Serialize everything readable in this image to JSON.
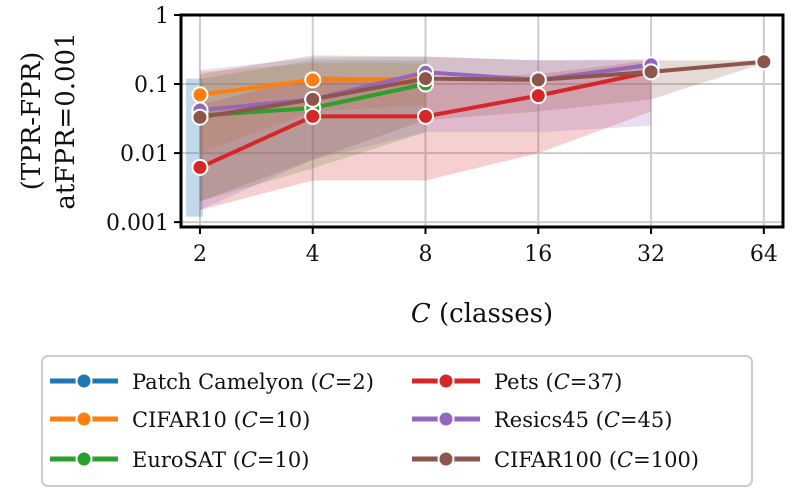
{
  "chart_data": {
    "type": "line",
    "title": "",
    "xlabel_var": "C",
    "xlabel_rest": " (classes)",
    "ylabel_line1": "(TPR-FPR)",
    "ylabel_line2": "atFPR=0.001",
    "x_scale": "log2",
    "y_scale": "log10",
    "x_ticks": [
      2,
      4,
      8,
      16,
      32,
      64
    ],
    "x_tick_labels": [
      "2",
      "4",
      "8",
      "16",
      "32",
      "64"
    ],
    "y_ticks": [
      0.001,
      0.01,
      0.1,
      1
    ],
    "y_tick_labels": [
      "0.001",
      "0.01",
      "0.1",
      "1"
    ],
    "xlim": [
      1.78,
      72
    ],
    "ylim": [
      0.00085,
      1.0
    ],
    "grid": true,
    "legend_position": "bottom",
    "series": [
      {
        "name": "Patch Camelyon (C=2)",
        "name_pre": "Patch Camelyon (",
        "name_post": "=2)",
        "color": "#1f77b4",
        "x": [
          2
        ],
        "y": [
          0.04
        ],
        "lower": [
          0.0012
        ],
        "upper": [
          0.12
        ]
      },
      {
        "name": "CIFAR10 (C=10)",
        "name_pre": "CIFAR10 (",
        "name_post": "=10)",
        "color": "#ff7f0e",
        "x": [
          2,
          4,
          8
        ],
        "y": [
          0.07,
          0.115,
          0.12
        ],
        "lower": [
          0.01,
          0.04,
          0.05
        ],
        "upper": [
          0.15,
          0.2,
          0.2
        ]
      },
      {
        "name": "EuroSAT (C=10)",
        "name_pre": "EuroSAT (",
        "name_post": "=10)",
        "color": "#2ca02c",
        "x": [
          2,
          4,
          8
        ],
        "y": [
          0.035,
          0.045,
          0.1
        ],
        "lower": [
          0.002,
          0.006,
          0.02
        ],
        "upper": [
          0.12,
          0.22,
          0.22
        ]
      },
      {
        "name": "Pets (C=37)",
        "name_pre": "Pets (",
        "name_post": "=37)",
        "color": "#d62728",
        "x": [
          2,
          4,
          8,
          16,
          32
        ],
        "y": [
          0.0062,
          0.034,
          0.034,
          0.068,
          0.15
        ],
        "lower": [
          0.0015,
          0.004,
          0.004,
          0.01,
          0.04
        ],
        "upper": [
          0.05,
          0.13,
          0.12,
          0.14,
          0.22
        ]
      },
      {
        "name": "Resics45 (C=45)",
        "name_pre": "Resics45 (",
        "name_post": "=45)",
        "color": "#9467bd",
        "x": [
          2,
          4,
          8,
          16,
          32
        ],
        "y": [
          0.042,
          0.06,
          0.148,
          0.115,
          0.19
        ],
        "lower": [
          0.0015,
          0.008,
          0.02,
          0.02,
          0.025
        ],
        "upper": [
          0.16,
          0.24,
          0.25,
          0.22,
          0.23
        ]
      },
      {
        "name": "CIFAR100 (C=100)",
        "name_pre": "CIFAR100 (",
        "name_post": "=100)",
        "color": "#8c564b",
        "x": [
          2,
          4,
          8,
          16,
          32,
          64
        ],
        "y": [
          0.033,
          0.06,
          0.12,
          0.115,
          0.15,
          0.21
        ],
        "lower": [
          0.002,
          0.008,
          0.03,
          0.04,
          0.06,
          0.2
        ],
        "upper": [
          0.14,
          0.26,
          0.25,
          0.22,
          0.22,
          0.22
        ]
      }
    ]
  }
}
